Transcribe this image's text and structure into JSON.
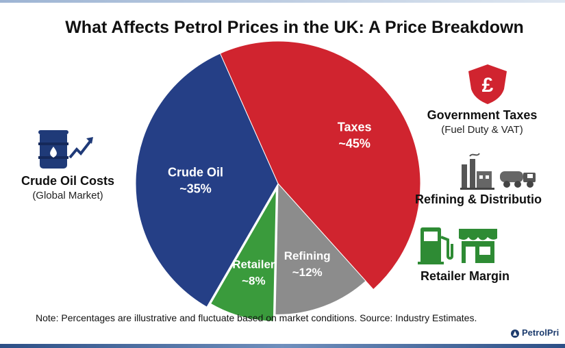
{
  "title": "What Affects Petrol Prices in the UK: A Price Breakdown",
  "chart_data": {
    "type": "pie",
    "title": "What Affects Petrol Prices in the UK: A Price Breakdown",
    "slices": [
      {
        "label": "Taxes",
        "value_label": "~45%",
        "value": 45,
        "color": "#d0242f"
      },
      {
        "label": "Refining",
        "value_label": "~12%",
        "value": 12,
        "color": "#8c8c8c"
      },
      {
        "label": "Retailer",
        "value_label": "~8%",
        "value": 8,
        "color": "#3a9b3c"
      },
      {
        "label": "Crude Oil",
        "value_label": "~35%",
        "value": 35,
        "color": "#253f86"
      }
    ]
  },
  "callouts": {
    "crude": {
      "title": "Crude Oil Costs",
      "subtitle": "(Global Market)",
      "icon": "oil-barrel-icon"
    },
    "taxes": {
      "title": "Government Taxes",
      "subtitle": "(Fuel Duty & VAT)",
      "icon": "pound-shield-icon"
    },
    "refining": {
      "title": "Refining & Distributio",
      "icon": "refinery-truck-icon"
    },
    "retailer": {
      "title": "Retailer Margin",
      "icon": "fuel-pump-shop-icon"
    }
  },
  "note": "Note: Percentages are illustrative and fluctuate based on market conditions. Source: Industry Estimates.",
  "brand": "PetrolPri",
  "colors": {
    "red": "#d0242f",
    "blue": "#253f86",
    "grey": "#8c8c8c",
    "green": "#3a9b3c",
    "brand": "#1d3c6e"
  }
}
